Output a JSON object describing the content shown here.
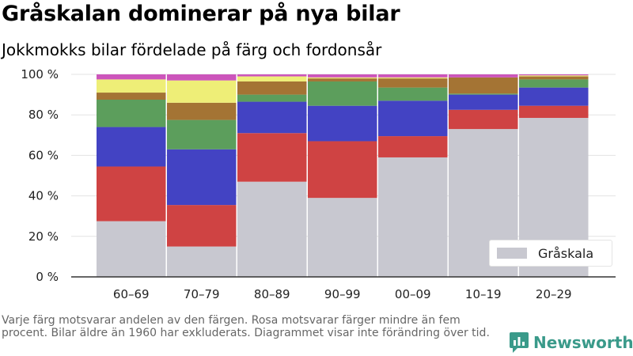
{
  "header": {
    "title": "Gråskalan dominerar på nya bilar",
    "subtitle": "Jokkmokks bilar fördelade på färg och fordonsår"
  },
  "legend": {
    "label": "Gråskala",
    "color": "#c8c8d0"
  },
  "footnote": "Varje färg motsvarar andelen av den färgen. Rosa motsvarar färger mindre än fem procent. Bilar äldre än 1960 har exkluderats. Diagrammet visar inte förändring över tid.",
  "brand": {
    "name": "Newsworthy",
    "icon": "newsworthy-logo-icon",
    "color": "#3a9a8a"
  },
  "chart_data": {
    "type": "bar",
    "stacked": true,
    "categories": [
      "60–69",
      "70–79",
      "80–89",
      "90–99",
      "00–09",
      "10–19",
      "20–29"
    ],
    "yticks": [
      "0 %",
      "20 %",
      "40 %",
      "60 %",
      "80 %",
      "100 %"
    ],
    "ylim": [
      0,
      100
    ],
    "grid": true,
    "legend_position": "bottom-right",
    "series": [
      {
        "name": "Gråskala",
        "color": "#c8c8d0",
        "values": [
          27.5,
          15,
          47,
          39,
          59,
          73,
          78.5
        ]
      },
      {
        "color": "#cf4343",
        "values": [
          27,
          20.5,
          24,
          28,
          10.5,
          9.5,
          6
        ]
      },
      {
        "color": "#4343c3",
        "values": [
          19.5,
          27.5,
          15.5,
          17.5,
          17.5,
          7.5,
          9
        ]
      },
      {
        "color": "#5c9e5c",
        "values": [
          13.5,
          14.5,
          3.5,
          12,
          6.5,
          0.5,
          4
        ]
      },
      {
        "color": "#a47434",
        "values": [
          3.5,
          8.5,
          6.5,
          1.5,
          4.5,
          8,
          1.5
        ]
      },
      {
        "color": "#eeee77",
        "values": [
          6.5,
          11,
          2.5,
          0.5,
          0.5,
          0,
          0.5
        ]
      },
      {
        "color": "#cc55bb",
        "values": [
          2.5,
          3,
          1,
          1.5,
          1.5,
          1.5,
          0.5
        ]
      }
    ]
  }
}
